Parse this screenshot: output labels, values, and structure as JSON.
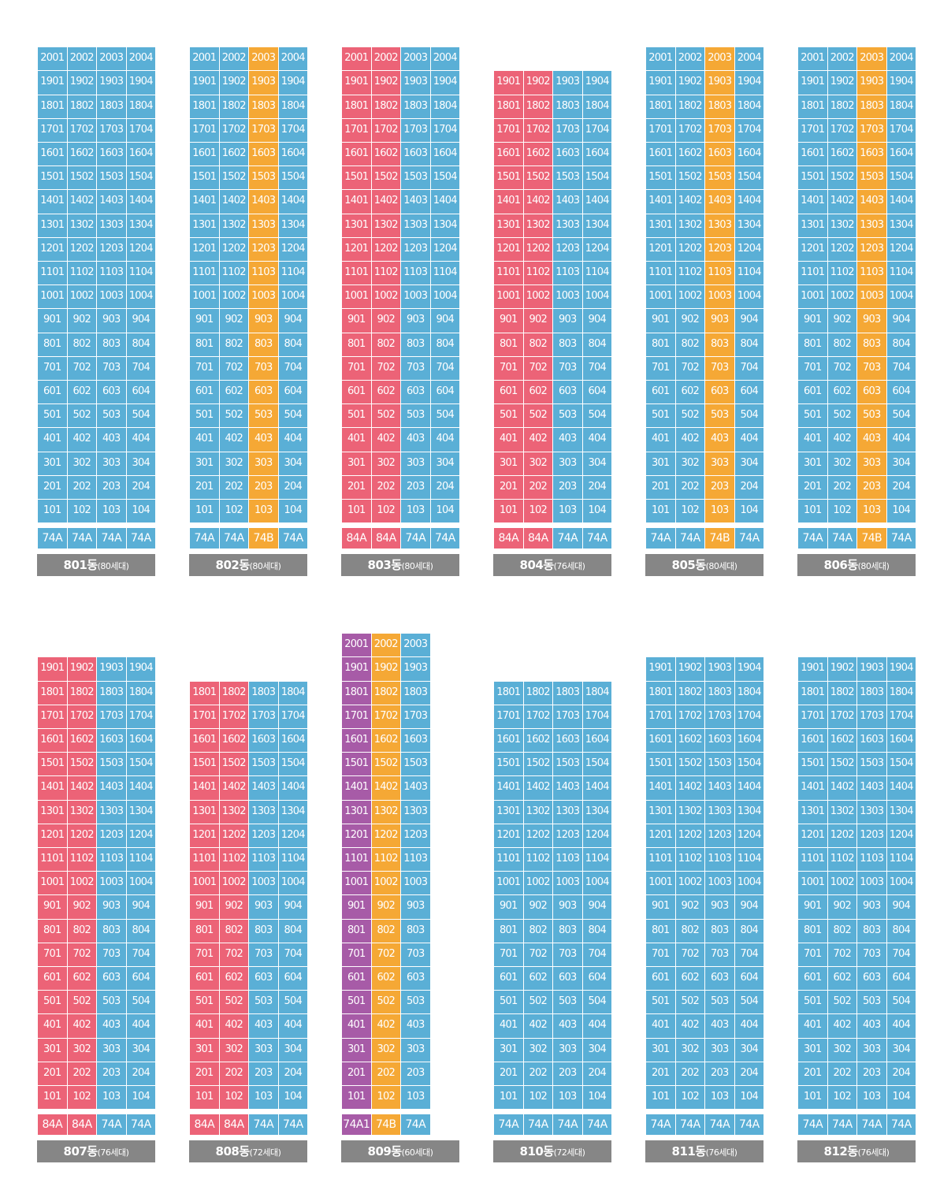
{
  "colors": {
    "74A": "#5aafd6",
    "74B": "#f5a835",
    "84A": "#ec6377",
    "74A1": "#a75ba7"
  },
  "buildings": [
    {
      "name": "801동",
      "count": "(80세대)",
      "floors": 20,
      "lines": 4,
      "types": [
        "74A",
        "74A",
        "74A",
        "74A"
      ]
    },
    {
      "name": "802동",
      "count": "(80세대)",
      "floors": 20,
      "lines": 4,
      "types": [
        "74A",
        "74A",
        "74B",
        "74A"
      ]
    },
    {
      "name": "803동",
      "count": "(80세대)",
      "floors": 20,
      "lines": 4,
      "types": [
        "84A",
        "84A",
        "74A",
        "74A"
      ]
    },
    {
      "name": "804동",
      "count": "(76세대)",
      "floors": 19,
      "lines": 4,
      "types": [
        "84A",
        "84A",
        "74A",
        "74A"
      ]
    },
    {
      "name": "805동",
      "count": "(80세대)",
      "floors": 20,
      "lines": 4,
      "types": [
        "74A",
        "74A",
        "74B",
        "74A"
      ]
    },
    {
      "name": "806동",
      "count": "(80세대)",
      "floors": 20,
      "lines": 4,
      "types": [
        "74A",
        "74A",
        "74B",
        "74A"
      ]
    },
    {
      "name": "807동",
      "count": "(76세대)",
      "floors": 19,
      "lines": 4,
      "types": [
        "84A",
        "84A",
        "74A",
        "74A"
      ]
    },
    {
      "name": "808동",
      "count": "(72세대)",
      "floors": 18,
      "lines": 4,
      "types": [
        "84A",
        "84A",
        "74A",
        "74A"
      ]
    },
    {
      "name": "809동",
      "count": "(60세대)",
      "floors": 20,
      "lines": 3,
      "types": [
        "74A1",
        "74B",
        "74A"
      ]
    },
    {
      "name": "810동",
      "count": "(72세대)",
      "floors": 18,
      "lines": 4,
      "types": [
        "74A",
        "74A",
        "74A",
        "74A"
      ]
    },
    {
      "name": "811동",
      "count": "(76세대)",
      "floors": 19,
      "lines": 4,
      "types": [
        "74A",
        "74A",
        "74A",
        "74A"
      ]
    },
    {
      "name": "812동",
      "count": "(76세대)",
      "floors": 19,
      "lines": 4,
      "types": [
        "74A",
        "74A",
        "74A",
        "74A"
      ]
    }
  ]
}
